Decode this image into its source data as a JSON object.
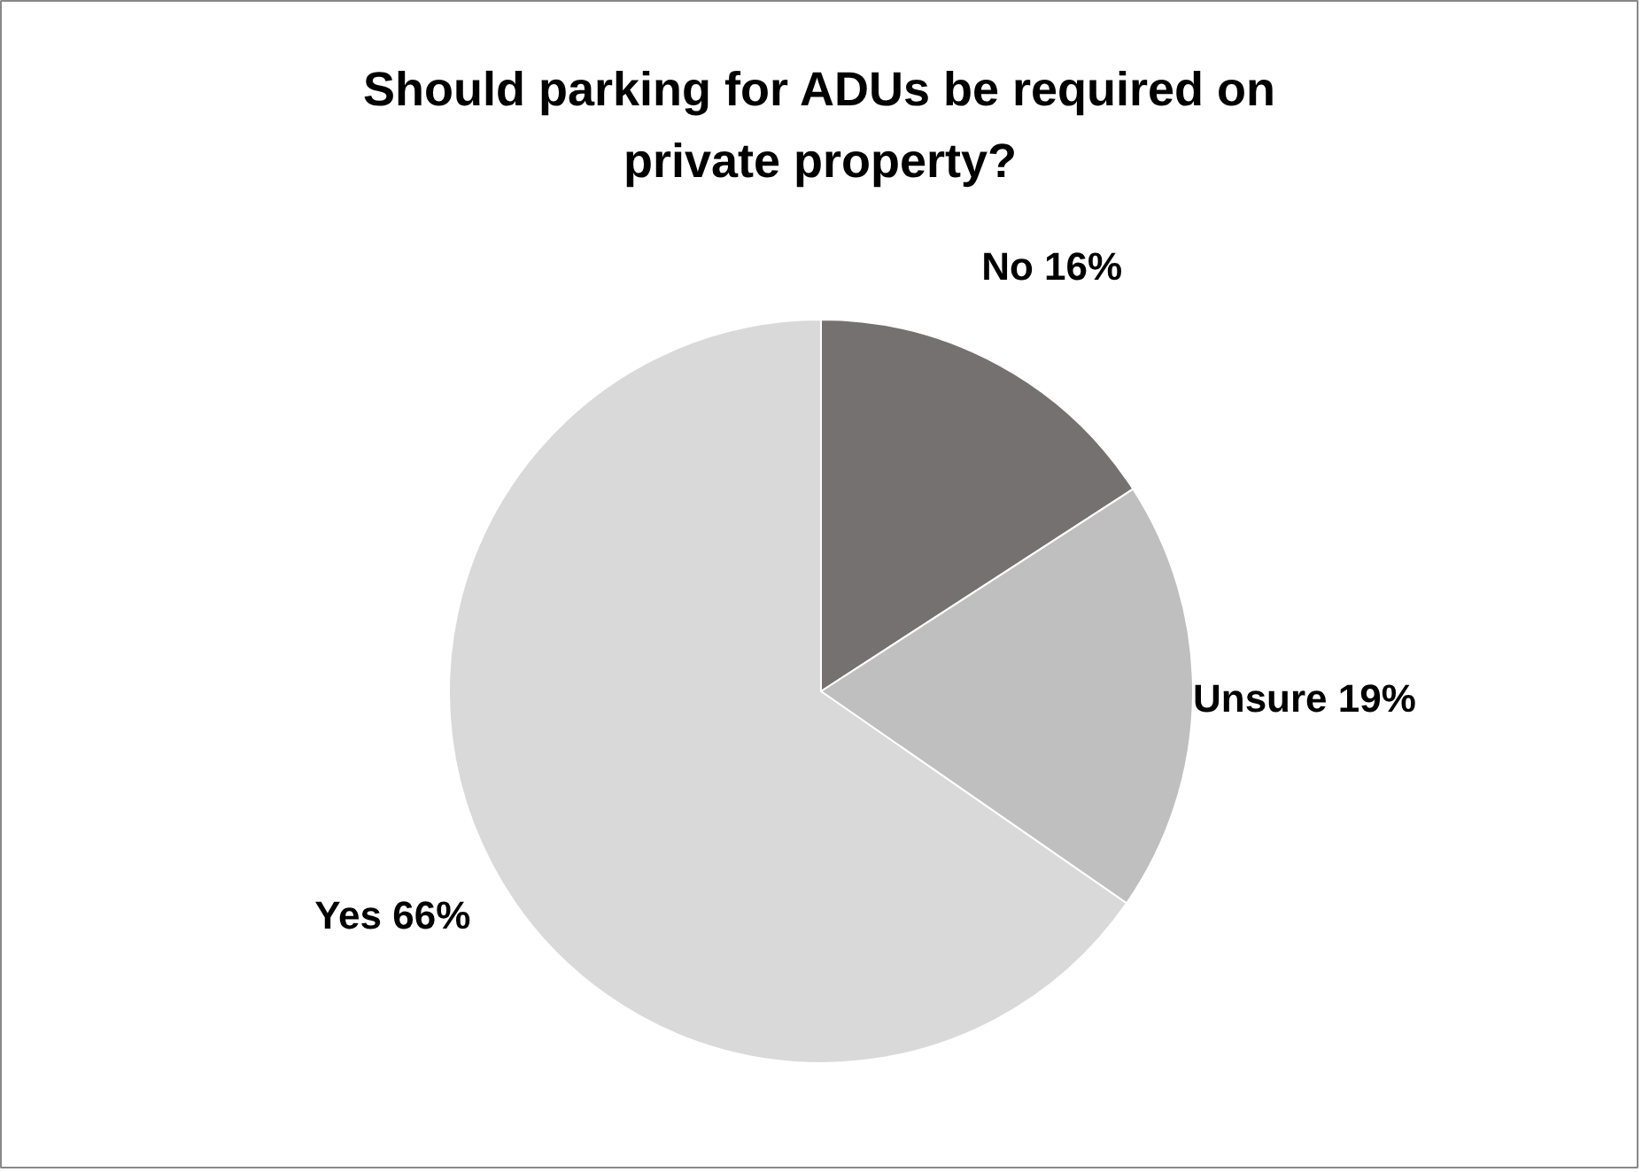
{
  "chart_data": {
    "type": "pie",
    "title": "Should parking for ADUs be required on private property?",
    "categories": [
      "No",
      "Unsure",
      "Yes"
    ],
    "values": [
      16,
      19,
      66
    ],
    "colors": [
      "#767171",
      "#bfbfbf",
      "#d9d9d9"
    ],
    "value_labels": [
      "16%",
      "19%",
      "66%"
    ]
  }
}
